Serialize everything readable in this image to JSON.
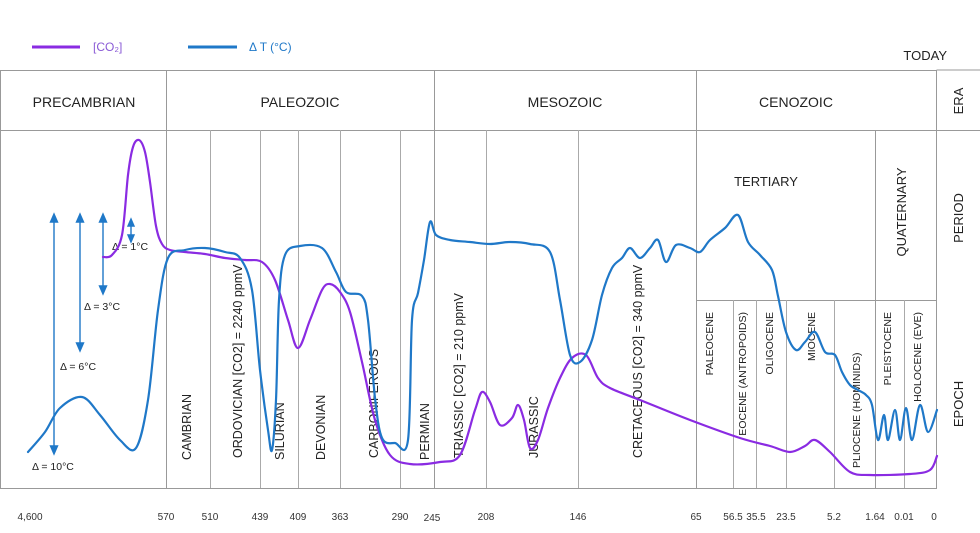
{
  "legend": [
    {
      "label": "[CO₂]",
      "color": "#8a2be2"
    },
    {
      "label": "Δ T (°C)",
      "color": "#1f78c8"
    }
  ],
  "today_label": "TODAY",
  "row_labels": [
    "ERA",
    "PERIOD",
    "EPOCH"
  ],
  "eras": [
    "PRECAMBRIAN",
    "PALEOZOIC",
    "MESOZOIC",
    "CENOZOIC"
  ],
  "periods": [
    {
      "label": "CAMBRIAN",
      "color": "#222"
    },
    {
      "label": "ORDOVICIAN [CO2] = 2240 ppmV",
      "color": "#222"
    },
    {
      "label": "SILURIAN",
      "color": "#222"
    },
    {
      "label": "DEVONIAN",
      "color": "#222"
    },
    {
      "label": "CARBONIFEROUS",
      "color": "#222"
    },
    {
      "label": "PERMIAN",
      "color": "#222"
    },
    {
      "label": "TRIASSIC [CO2] = 210 ppmV",
      "color": "#222"
    },
    {
      "label": "JURASSIC",
      "color": "#222"
    },
    {
      "label": "CRETACEOUS [CO2] = 340 ppmV",
      "color": "#222"
    }
  ],
  "cenozoic_subperiods": [
    "TERTIARY",
    "QUATERNARY"
  ],
  "epochs": [
    {
      "label": "PALEOCENE",
      "color": "#222"
    },
    {
      "label": "EOCENE (ANTROPOIDS)",
      "color": "#222"
    },
    {
      "label": "OLIGOCENE",
      "color": "#222"
    },
    {
      "label": "MIOCENE",
      "color": "#222"
    },
    {
      "label": "PLIOCENE (HOMINIDS)",
      "color": "#3a3ad0"
    },
    {
      "label": "PLEISTOCENE",
      "color": "#222"
    },
    {
      "label": "HOLOCENE (EVE)",
      "color": "#222"
    }
  ],
  "delta_labels": [
    "Δ = 1°C",
    "Δ = 3°C",
    "Δ = 6°C",
    "Δ = 10°C"
  ],
  "chart_data": {
    "type": "line",
    "x_ticks": [
      "4,600",
      "570",
      "510",
      "439",
      "409",
      "363",
      "290",
      "245",
      "208",
      "146",
      "65",
      "56.5",
      "35.5",
      "23.5",
      "5.2",
      "1.64",
      "0.01",
      "0"
    ],
    "series": [
      {
        "name": "[CO₂]",
        "color": "#8a2be2",
        "values": [
          [
            103,
            257
          ],
          [
            112,
            255
          ],
          [
            122,
            235
          ],
          [
            128,
            175
          ],
          [
            133,
            147
          ],
          [
            139,
            140
          ],
          [
            145,
            152
          ],
          [
            150,
            182
          ],
          [
            156,
            226
          ],
          [
            162,
            244
          ],
          [
            170,
            250
          ],
          [
            185,
            252
          ],
          [
            205,
            254
          ],
          [
            225,
            258
          ],
          [
            245,
            260
          ],
          [
            262,
            262
          ],
          [
            275,
            280
          ],
          [
            288,
            320
          ],
          [
            298,
            348
          ],
          [
            310,
            320
          ],
          [
            322,
            290
          ],
          [
            330,
            284
          ],
          [
            340,
            292
          ],
          [
            350,
            312
          ],
          [
            362,
            362
          ],
          [
            375,
            420
          ],
          [
            390,
            455
          ],
          [
            410,
            464
          ],
          [
            440,
            462
          ],
          [
            460,
            455
          ],
          [
            475,
            410
          ],
          [
            482,
            392
          ],
          [
            490,
            402
          ],
          [
            500,
            425
          ],
          [
            512,
            418
          ],
          [
            518,
            405
          ],
          [
            524,
            420
          ],
          [
            530,
            448
          ],
          [
            538,
            440
          ],
          [
            548,
            408
          ],
          [
            560,
            378
          ],
          [
            572,
            358
          ],
          [
            586,
            355
          ],
          [
            598,
            378
          ],
          [
            610,
            388
          ],
          [
            640,
            400
          ],
          [
            690,
            420
          ],
          [
            740,
            438
          ],
          [
            770,
            446
          ],
          [
            790,
            452
          ],
          [
            805,
            446
          ],
          [
            815,
            440
          ],
          [
            830,
            452
          ],
          [
            850,
            472
          ],
          [
            870,
            475
          ],
          [
            910,
            474
          ],
          [
            930,
            470
          ],
          [
            937,
            456
          ]
        ]
      },
      {
        "name": "Δ T (°C)",
        "color": "#1f78c8",
        "values": [
          [
            28,
            452
          ],
          [
            45,
            432
          ],
          [
            60,
            408
          ],
          [
            82,
            397
          ],
          [
            100,
            415
          ],
          [
            120,
            440
          ],
          [
            136,
            448
          ],
          [
            148,
            400
          ],
          [
            158,
            310
          ],
          [
            168,
            258
          ],
          [
            185,
            250
          ],
          [
            205,
            248
          ],
          [
            225,
            252
          ],
          [
            240,
            258
          ],
          [
            252,
            290
          ],
          [
            260,
            370
          ],
          [
            268,
            430
          ],
          [
            272,
            450
          ],
          [
            276,
            400
          ],
          [
            279,
            300
          ],
          [
            285,
            255
          ],
          [
            300,
            246
          ],
          [
            322,
            248
          ],
          [
            336,
            272
          ],
          [
            346,
            292
          ],
          [
            362,
            296
          ],
          [
            368,
            320
          ],
          [
            375,
            398
          ],
          [
            382,
            438
          ],
          [
            395,
            443
          ],
          [
            408,
            440
          ],
          [
            412,
            320
          ],
          [
            418,
            293
          ],
          [
            424,
            260
          ],
          [
            430,
            222
          ],
          [
            436,
            235
          ],
          [
            450,
            240
          ],
          [
            470,
            242
          ],
          [
            490,
            244
          ],
          [
            510,
            242
          ],
          [
            530,
            244
          ],
          [
            550,
            252
          ],
          [
            560,
            300
          ],
          [
            570,
            355
          ],
          [
            580,
            362
          ],
          [
            592,
            340
          ],
          [
            602,
            295
          ],
          [
            612,
            268
          ],
          [
            622,
            258
          ],
          [
            630,
            248
          ],
          [
            640,
            258
          ],
          [
            650,
            248
          ],
          [
            658,
            240
          ],
          [
            666,
            262
          ],
          [
            676,
            245
          ],
          [
            690,
            248
          ],
          [
            700,
            252
          ],
          [
            710,
            240
          ],
          [
            725,
            228
          ],
          [
            738,
            215
          ],
          [
            748,
            242
          ],
          [
            760,
            255
          ],
          [
            772,
            270
          ],
          [
            778,
            296
          ],
          [
            786,
            332
          ],
          [
            796,
            350
          ],
          [
            805,
            342
          ],
          [
            815,
            332
          ],
          [
            825,
            352
          ],
          [
            835,
            355
          ],
          [
            842,
            372
          ],
          [
            850,
            385
          ],
          [
            858,
            390
          ],
          [
            866,
            395
          ],
          [
            872,
            405
          ],
          [
            878,
            440
          ],
          [
            884,
            415
          ],
          [
            888,
            440
          ],
          [
            895,
            410
          ],
          [
            900,
            440
          ],
          [
            906,
            408
          ],
          [
            912,
            440
          ],
          [
            920,
            405
          ],
          [
            928,
            432
          ],
          [
            937,
            410
          ]
        ]
      }
    ]
  }
}
